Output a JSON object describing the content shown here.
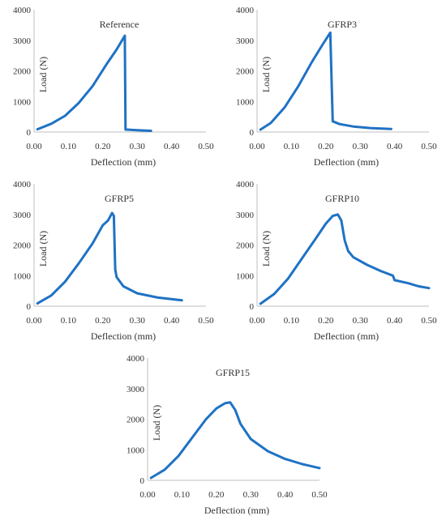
{
  "chart_data": [
    {
      "type": "line",
      "title": "Reference",
      "xlabel": "Deflection (mm)",
      "ylabel": "Load (N)",
      "xlim": [
        0,
        0.5
      ],
      "ylim": [
        0,
        4000
      ],
      "xticks": [
        "0.00",
        "0.10",
        "0.20",
        "0.30",
        "0.40",
        "0.50"
      ],
      "yticks": [
        "0",
        "1000",
        "2000",
        "3000",
        "4000"
      ],
      "series": [
        {
          "color": "#1f72c4",
          "x": [
            0.01,
            0.05,
            0.09,
            0.13,
            0.17,
            0.21,
            0.24,
            0.264,
            0.266,
            0.27,
            0.3,
            0.34
          ],
          "y": [
            90,
            270,
            530,
            950,
            1500,
            2200,
            2700,
            3150,
            80,
            80,
            60,
            40
          ]
        }
      ]
    },
    {
      "type": "line",
      "title": "GFRP3",
      "xlabel": "Deflection (mm)",
      "ylabel": "Load (N)",
      "xlim": [
        0,
        0.5
      ],
      "ylim": [
        0,
        4000
      ],
      "xticks": [
        "0.00",
        "0.10",
        "0.20",
        "0.30",
        "0.40",
        "0.50"
      ],
      "yticks": [
        "0",
        "1000",
        "2000",
        "3000",
        "4000"
      ],
      "series": [
        {
          "color": "#1f72c4",
          "x": [
            0.01,
            0.04,
            0.08,
            0.12,
            0.16,
            0.19,
            0.213,
            0.215,
            0.22,
            0.24,
            0.28,
            0.33,
            0.39
          ],
          "y": [
            80,
            300,
            800,
            1500,
            2300,
            2850,
            3250,
            2380,
            350,
            260,
            180,
            130,
            100
          ]
        }
      ]
    },
    {
      "type": "line",
      "title": "GFRP5",
      "xlabel": "Deflection (mm)",
      "ylabel": "Load (N)",
      "xlim": [
        0,
        0.5
      ],
      "ylim": [
        0,
        4000
      ],
      "xticks": [
        "0.00",
        "0.10",
        "0.20",
        "0.30",
        "0.40",
        "0.50"
      ],
      "yticks": [
        "0",
        "1000",
        "2000",
        "3000",
        "4000"
      ],
      "series": [
        {
          "color": "#1f72c4",
          "x": [
            0.01,
            0.05,
            0.09,
            0.13,
            0.17,
            0.2,
            0.215,
            0.227,
            0.232,
            0.236,
            0.24,
            0.26,
            0.3,
            0.36,
            0.43
          ],
          "y": [
            90,
            350,
            800,
            1400,
            2050,
            2650,
            2800,
            3050,
            2950,
            1200,
            950,
            650,
            420,
            280,
            190
          ]
        }
      ]
    },
    {
      "type": "line",
      "title": "GFRP10",
      "xlabel": "Deflection (mm)",
      "ylabel": "Load (N)",
      "xlim": [
        0,
        0.5
      ],
      "ylim": [
        0,
        4000
      ],
      "xticks": [
        "0.00",
        "0.10",
        "0.20",
        "0.30",
        "0.40",
        "0.50"
      ],
      "yticks": [
        "0",
        "1000",
        "2000",
        "3000",
        "4000"
      ],
      "series": [
        {
          "color": "#1f72c4",
          "x": [
            0.01,
            0.05,
            0.09,
            0.13,
            0.17,
            0.2,
            0.22,
            0.235,
            0.245,
            0.255,
            0.265,
            0.28,
            0.32,
            0.36,
            0.395,
            0.4,
            0.44,
            0.47,
            0.5
          ],
          "y": [
            80,
            400,
            900,
            1550,
            2200,
            2700,
            2950,
            3000,
            2800,
            2150,
            1800,
            1600,
            1350,
            1150,
            1000,
            850,
            750,
            650,
            590
          ]
        }
      ]
    },
    {
      "type": "line",
      "title": "GFRP15",
      "xlabel": "Deflection  (mm)",
      "ylabel": "Load (N)",
      "xlim": [
        0,
        0.5
      ],
      "ylim": [
        0,
        4000
      ],
      "xticks": [
        "0.00",
        "0.10",
        "0.20",
        "0.30",
        "0.40",
        "0.50"
      ],
      "yticks": [
        "0",
        "1000",
        "2000",
        "3000",
        "4000"
      ],
      "series": [
        {
          "color": "#1f72c4",
          "x": [
            0.01,
            0.05,
            0.09,
            0.13,
            0.17,
            0.2,
            0.225,
            0.24,
            0.255,
            0.27,
            0.3,
            0.35,
            0.4,
            0.45,
            0.5
          ],
          "y": [
            80,
            350,
            800,
            1400,
            2000,
            2350,
            2520,
            2550,
            2300,
            1850,
            1350,
            950,
            700,
            530,
            400
          ]
        }
      ]
    }
  ]
}
